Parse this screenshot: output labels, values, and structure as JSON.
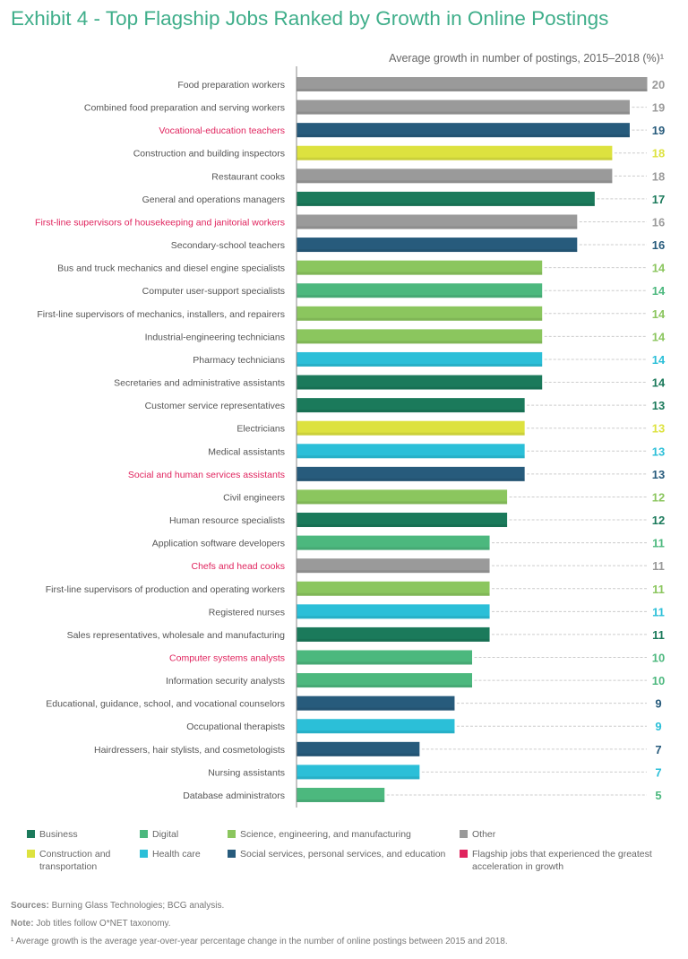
{
  "chart_data": {
    "type": "bar",
    "orientation": "horizontal",
    "title": "Exhibit 4 - Top Flagship Jobs Ranked by Growth in Online Postings",
    "xlabel": "Average growth in number of postings, 2015–2018 (%)¹",
    "xlim": [
      0,
      20
    ],
    "grid": false,
    "legend_placement": "bottom",
    "categories_colors": {
      "business": "#1b7a5b",
      "digital": "#4cb87e",
      "science": "#8bc65e",
      "other": "#9a9a9a",
      "construction": "#dde23f",
      "health": "#2bbfd8",
      "social": "#275b7c",
      "highlight_text": "#e0245e"
    },
    "bars": [
      {
        "label": "Food preparation workers",
        "value": 20,
        "group": "other",
        "highlight": false
      },
      {
        "label": "Combined food preparation and serving workers",
        "value": 19,
        "group": "other",
        "highlight": false
      },
      {
        "label": "Vocational-education teachers",
        "value": 19,
        "group": "social",
        "highlight": true
      },
      {
        "label": "Construction and building inspectors",
        "value": 18,
        "group": "construction",
        "highlight": false
      },
      {
        "label": "Restaurant cooks",
        "value": 18,
        "group": "other",
        "highlight": false
      },
      {
        "label": "General and operations managers",
        "value": 17,
        "group": "business",
        "highlight": false
      },
      {
        "label": "First-line supervisors of housekeeping and janitorial workers",
        "value": 16,
        "group": "other",
        "highlight": true
      },
      {
        "label": "Secondary-school teachers",
        "value": 16,
        "group": "social",
        "highlight": false
      },
      {
        "label": "Bus and truck mechanics and diesel engine specialists",
        "value": 14,
        "group": "science",
        "highlight": false
      },
      {
        "label": "Computer user-support specialists",
        "value": 14,
        "group": "digital",
        "highlight": false
      },
      {
        "label": "First-line supervisors of mechanics, installers, and repairers",
        "value": 14,
        "group": "science",
        "highlight": false
      },
      {
        "label": "Industrial-engineering technicians",
        "value": 14,
        "group": "science",
        "highlight": false
      },
      {
        "label": "Pharmacy technicians",
        "value": 14,
        "group": "health",
        "highlight": false
      },
      {
        "label": "Secretaries and administrative assistants",
        "value": 14,
        "group": "business",
        "highlight": false
      },
      {
        "label": "Customer service representatives",
        "value": 13,
        "group": "business",
        "highlight": false
      },
      {
        "label": "Electricians",
        "value": 13,
        "group": "construction",
        "highlight": false
      },
      {
        "label": "Medical assistants",
        "value": 13,
        "group": "health",
        "highlight": false
      },
      {
        "label": "Social and human services assistants",
        "value": 13,
        "group": "social",
        "highlight": true
      },
      {
        "label": "Civil engineers",
        "value": 12,
        "group": "science",
        "highlight": false
      },
      {
        "label": "Human resource specialists",
        "value": 12,
        "group": "business",
        "highlight": false
      },
      {
        "label": "Application software developers",
        "value": 11,
        "group": "digital",
        "highlight": false
      },
      {
        "label": "Chefs and head cooks",
        "value": 11,
        "group": "other",
        "highlight": true
      },
      {
        "label": "First-line supervisors of production and operating workers",
        "value": 11,
        "group": "science",
        "highlight": false
      },
      {
        "label": "Registered nurses",
        "value": 11,
        "group": "health",
        "highlight": false
      },
      {
        "label": "Sales representatives, wholesale and manufacturing",
        "value": 11,
        "group": "business",
        "highlight": false
      },
      {
        "label": "Computer systems analysts",
        "value": 10,
        "group": "digital",
        "highlight": true
      },
      {
        "label": "Information security analysts",
        "value": 10,
        "group": "digital",
        "highlight": false
      },
      {
        "label": "Educational, guidance, school, and vocational counselors",
        "value": 9,
        "group": "social",
        "highlight": false
      },
      {
        "label": "Occupational therapists",
        "value": 9,
        "group": "health",
        "highlight": false
      },
      {
        "label": "Hairdressers, hair stylists, and cosmetologists",
        "value": 7,
        "group": "social",
        "highlight": false
      },
      {
        "label": "Nursing assistants",
        "value": 7,
        "group": "health",
        "highlight": false
      },
      {
        "label": "Database administrators",
        "value": 5,
        "group": "digital",
        "highlight": false
      }
    ],
    "legend": [
      {
        "key": "business",
        "label": "Business"
      },
      {
        "key": "digital",
        "label": "Digital"
      },
      {
        "key": "science",
        "label": "Science, engineering, and manufacturing"
      },
      {
        "key": "other",
        "label": "Other"
      },
      {
        "key": "construction",
        "label": "Construction and transportation"
      },
      {
        "key": "health",
        "label": "Health care"
      },
      {
        "key": "social",
        "label": "Social services, personal services, and education"
      },
      {
        "key": "highlight_text",
        "label": "Flagship jobs that experienced the greatest acceleration in growth"
      }
    ]
  },
  "footer": {
    "sources_label": "Sources:",
    "sources_text": " Burning Glass Technologies; BCG analysis.",
    "note_label": "Note:",
    "note_text": " Job titles follow O*NET taxonomy.",
    "footnote": "¹ Average growth is the average year-over-year percentage change in the number of online postings between 2015 and 2018."
  }
}
